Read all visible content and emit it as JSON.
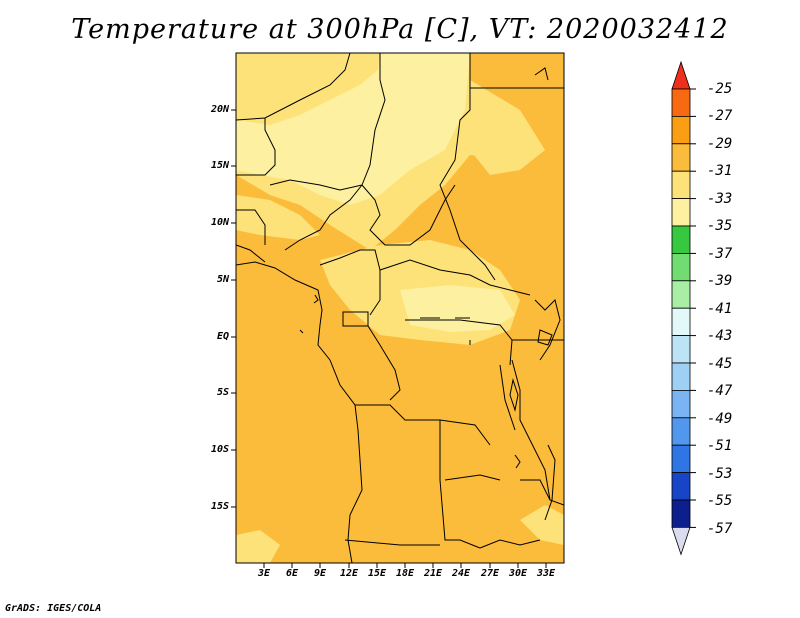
{
  "title": "Temperature at 300hPa [C], VT: 2020032412",
  "credit": "GrADS: IGES/COLA",
  "map": {
    "lat_labels": [
      "20N",
      "15N",
      "10N",
      "5N",
      "EQ",
      "5S",
      "10S",
      "15S"
    ],
    "lon_labels": [
      "3E",
      "6E",
      "9E",
      "12E",
      "15E",
      "18E",
      "21E",
      "24E",
      "27E",
      "30E",
      "33E"
    ],
    "colors": {
      "background_field": "#fbbb3b",
      "light_band": "#fde27a",
      "pale_band": "#fdf0a0",
      "border": "#000000"
    }
  },
  "colorbar": {
    "labels": [
      "-25",
      "-27",
      "-29",
      "-31",
      "-33",
      "-35",
      "-37",
      "-39",
      "-41",
      "-43",
      "-45",
      "-47",
      "-49",
      "-51",
      "-53",
      "-55",
      "-57"
    ],
    "colors": [
      "#ee2f1e",
      "#f86a12",
      "#fa9e14",
      "#fbbb3b",
      "#fde27a",
      "#fdf0a0",
      "#36c93f",
      "#71dc72",
      "#a8eea5",
      "#e3f8f9",
      "#bce3f6",
      "#9ed0f5",
      "#7ab4f2",
      "#5297ee",
      "#2f75e4",
      "#1845c7",
      "#0c1f8c",
      "#dcdcf0"
    ]
  }
}
